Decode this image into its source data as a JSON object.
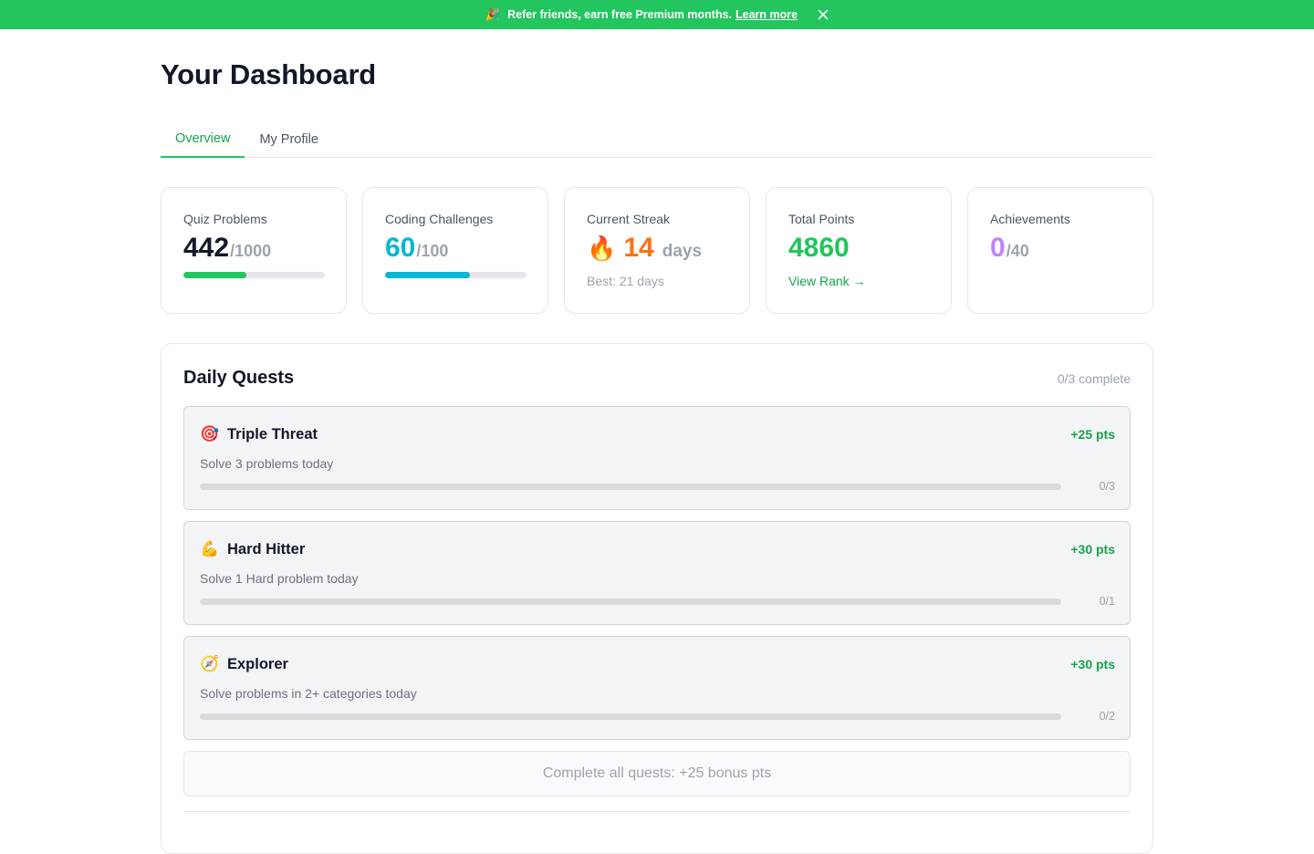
{
  "banner": {
    "icon": "party-popper-icon",
    "text": "Refer friends, earn free Premium months.",
    "link": "Learn more",
    "close_icon": "close-icon",
    "background": "#22c55e"
  },
  "page": {
    "title": "Your Dashboard"
  },
  "tabs": [
    {
      "label": "Overview",
      "active": true
    },
    {
      "label": "My Profile",
      "active": false
    }
  ],
  "stats": {
    "quiz": {
      "label": "Quiz Problems",
      "value": "442",
      "total": "/1000",
      "color": "#111827",
      "bar_color": "#22c55e",
      "progress": 0.442
    },
    "coding": {
      "label": "Coding Challenges",
      "value": "60",
      "total": "/100",
      "color": "#06b6d4",
      "bar_color": "#06b6d4",
      "progress": 0.6
    },
    "streak": {
      "label": "Current Streak",
      "icon": "fire-icon",
      "value": "14",
      "unit": "days",
      "best": "Best: 21 days",
      "color": "#f97316"
    },
    "points": {
      "label": "Total Points",
      "value": "4860",
      "link": "View Rank →",
      "color": "#22c55e"
    },
    "achievements": {
      "label": "Achievements",
      "value": "0",
      "total": "/40",
      "color": "#c084fc"
    }
  },
  "quests": {
    "title": "Daily Quests",
    "complete_text": "0/3 complete",
    "items": [
      {
        "icon": "target-icon",
        "glyph": "🎯",
        "name": "Triple Threat",
        "desc": "Solve 3 problems today",
        "points": "+25 pts",
        "progress": "0/3",
        "fraction": 0
      },
      {
        "icon": "flexed-biceps-icon",
        "glyph": "💪",
        "name": "Hard Hitter",
        "desc": "Solve 1 Hard problem today",
        "points": "+30 pts",
        "progress": "0/1",
        "fraction": 0
      },
      {
        "icon": "compass-icon",
        "glyph": "🧭",
        "name": "Explorer",
        "desc": "Solve problems in 2+ categories today",
        "points": "+30 pts",
        "progress": "0/2",
        "fraction": 0
      }
    ],
    "bonus_text": "Complete all quests: +25 bonus pts"
  }
}
